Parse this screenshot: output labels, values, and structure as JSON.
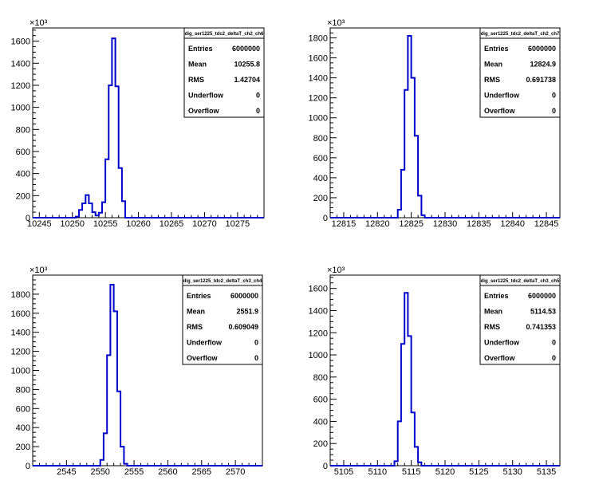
{
  "chart_data": [
    {
      "type": "histogram",
      "title": "dig_ser1225_tdc2_deltaT_ch2_ch6",
      "y_multiplier": "×10³",
      "xlim": [
        10244,
        10279
      ],
      "ylim": [
        0,
        1720
      ],
      "x_ticks": [
        10245,
        10250,
        10255,
        10260,
        10265,
        10270,
        10275
      ],
      "y_ticks": [
        0,
        200,
        400,
        600,
        800,
        1000,
        1200,
        1400,
        1600
      ],
      "bin_width": 0.5,
      "bins_x": [
        10250.5,
        10251,
        10251.5,
        10252,
        10252.5,
        10253,
        10253.5,
        10254,
        10254.5,
        10255,
        10255.5,
        10256,
        10256.5,
        10257,
        10257.5
      ],
      "bins_y": [
        10,
        70,
        130,
        205,
        130,
        50,
        20,
        45,
        140,
        530,
        1200,
        1625,
        1190,
        450,
        150
      ],
      "stats": [
        {
          "label": "Entries",
          "value": "6000000"
        },
        {
          "label": "Mean",
          "value": "10255.8"
        },
        {
          "label": "RMS",
          "value": "1.42704"
        },
        {
          "label": "Underflow",
          "value": "0"
        },
        {
          "label": "Overflow",
          "value": "0"
        }
      ]
    },
    {
      "type": "histogram",
      "title": "dig_ser1225_tdc2_deltaT_ch2_ch7",
      "y_multiplier": "×10³",
      "xlim": [
        12813,
        12847
      ],
      "ylim": [
        0,
        1900
      ],
      "x_ticks": [
        12815,
        12820,
        12825,
        12830,
        12835,
        12840,
        12845
      ],
      "y_ticks": [
        0,
        200,
        400,
        600,
        800,
        1000,
        1200,
        1400,
        1600,
        1800
      ],
      "bin_width": 0.5,
      "bins_x": [
        12823,
        12823.5,
        12824,
        12824.5,
        12825,
        12825.5,
        12826,
        12826.5
      ],
      "bins_y": [
        80,
        480,
        1280,
        1820,
        1400,
        820,
        220,
        25
      ],
      "stats": [
        {
          "label": "Entries",
          "value": "6000000"
        },
        {
          "label": "Mean",
          "value": "12824.9"
        },
        {
          "label": "RMS",
          "value": "0.691738"
        },
        {
          "label": "Underflow",
          "value": "0"
        },
        {
          "label": "Overflow",
          "value": "0"
        }
      ]
    },
    {
      "type": "histogram",
      "title": "dig_ser1225_tdc2_deltaT_ch3_ch4",
      "y_multiplier": "×10³",
      "xlim": [
        2540,
        2574
      ],
      "ylim": [
        0,
        2000
      ],
      "x_ticks": [
        2545,
        2550,
        2555,
        2560,
        2565,
        2570
      ],
      "y_ticks": [
        0,
        200,
        400,
        600,
        800,
        1000,
        1200,
        1400,
        1600,
        1800
      ],
      "bin_width": 0.5,
      "bins_x": [
        2550,
        2550.5,
        2551,
        2551.5,
        2552,
        2552.5,
        2553,
        2553.5
      ],
      "bins_y": [
        60,
        340,
        1160,
        1900,
        1620,
        780,
        200,
        20
      ],
      "stats": [
        {
          "label": "Entries",
          "value": "6000000"
        },
        {
          "label": "Mean",
          "value": "2551.9"
        },
        {
          "label": "RMS",
          "value": "0.609049"
        },
        {
          "label": "Underflow",
          "value": "0"
        },
        {
          "label": "Overflow",
          "value": "0"
        }
      ]
    },
    {
      "type": "histogram",
      "title": "dig_ser1225_tdc2_deltaT_ch3_ch5",
      "y_multiplier": "×10³",
      "xlim": [
        5103,
        5137
      ],
      "ylim": [
        0,
        1720
      ],
      "x_ticks": [
        5105,
        5110,
        5115,
        5120,
        5125,
        5130,
        5135
      ],
      "y_ticks": [
        0,
        200,
        400,
        600,
        800,
        1000,
        1200,
        1400,
        1600
      ],
      "bin_width": 0.5,
      "bins_x": [
        5112.5,
        5113,
        5113.5,
        5114,
        5114.5,
        5115,
        5115.5,
        5116
      ],
      "bins_y": [
        40,
        400,
        1100,
        1560,
        1170,
        480,
        170,
        30
      ],
      "stats": [
        {
          "label": "Entries",
          "value": "6000000"
        },
        {
          "label": "Mean",
          "value": "5114.53"
        },
        {
          "label": "RMS",
          "value": "0.741353"
        },
        {
          "label": "Underflow",
          "value": "0"
        },
        {
          "label": "Overflow",
          "value": "0"
        }
      ]
    }
  ],
  "colors": {
    "histogram_line": "#0000cc",
    "axis": "#000000",
    "background": "#ffffff"
  }
}
